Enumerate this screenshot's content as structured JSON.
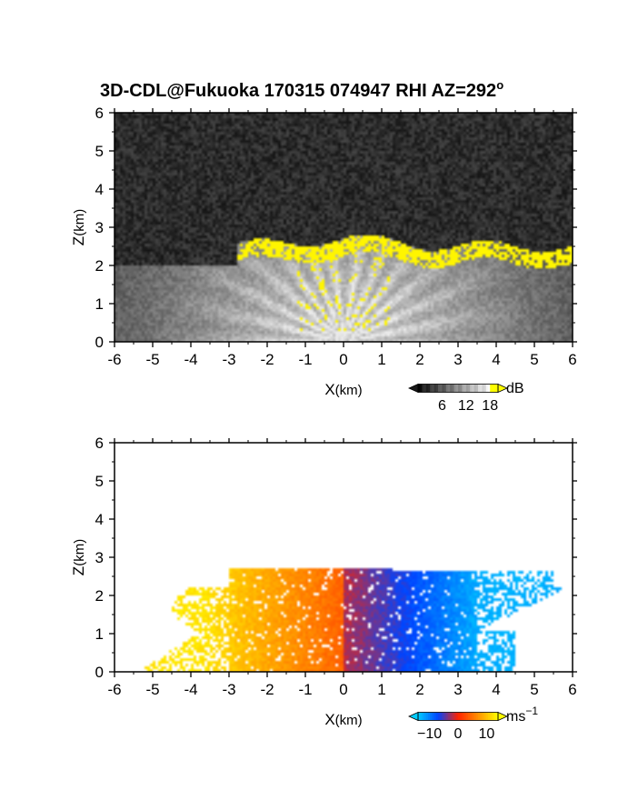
{
  "title": {
    "main": "3D-CDL@Fukuoka 170315 074947 RHI AZ=292",
    "degree": "o"
  },
  "chart_data": [
    {
      "type": "heatmap",
      "quantity": "backscatter",
      "x": {
        "label_main": "X",
        "label_unit": "(km)",
        "range": [
          -6,
          6
        ],
        "ticks": [
          "-6",
          "-5",
          "-4",
          "-3",
          "-2",
          "-1",
          "0",
          "1",
          "2",
          "3",
          "4",
          "5",
          "6"
        ]
      },
      "y": {
        "label_main": "Z",
        "label_unit": "(km)",
        "range": [
          0,
          6
        ],
        "ticks": [
          "0",
          "1",
          "2",
          "3",
          "4",
          "5",
          "6"
        ]
      },
      "colorbar": {
        "unit": "dB",
        "ticks": [
          "6",
          "12",
          "18"
        ],
        "tick_values": [
          6,
          12,
          18
        ],
        "range": [
          0,
          20
        ],
        "low_color": "#000000",
        "high_color": "#ffff00"
      },
      "features": {
        "cloud_base_top_km": 2.6,
        "cloud_base_bottom_km": 2.2,
        "cloud_extent_km": [
          -2.8,
          6
        ],
        "highlight_color": "#ffff00"
      }
    },
    {
      "type": "heatmap",
      "quantity": "doppler velocity",
      "x": {
        "label_main": "X",
        "label_unit": "(km)",
        "range": [
          -6,
          6
        ],
        "ticks": [
          "-6",
          "-5",
          "-4",
          "-3",
          "-2",
          "-1",
          "0",
          "1",
          "2",
          "3",
          "4",
          "5",
          "6"
        ]
      },
      "y": {
        "label_main": "Z",
        "label_unit": "(km)",
        "range": [
          0,
          6
        ],
        "ticks": [
          "0",
          "1",
          "2",
          "3",
          "4",
          "5",
          "6"
        ]
      },
      "colorbar": {
        "unit_main": "ms",
        "unit_exp": "−1",
        "ticks": [
          "−10",
          "0",
          "10"
        ],
        "tick_values": [
          -10,
          0,
          10
        ],
        "range": [
          -14,
          14
        ],
        "colors": [
          "#00ccff",
          "#0044ff",
          "#ff2200",
          "#ffff00"
        ]
      },
      "features": {
        "data_top_km": 2.7,
        "neg_extent_km": [
          0,
          6
        ],
        "pos_extent_km": [
          -6,
          0
        ]
      }
    }
  ]
}
